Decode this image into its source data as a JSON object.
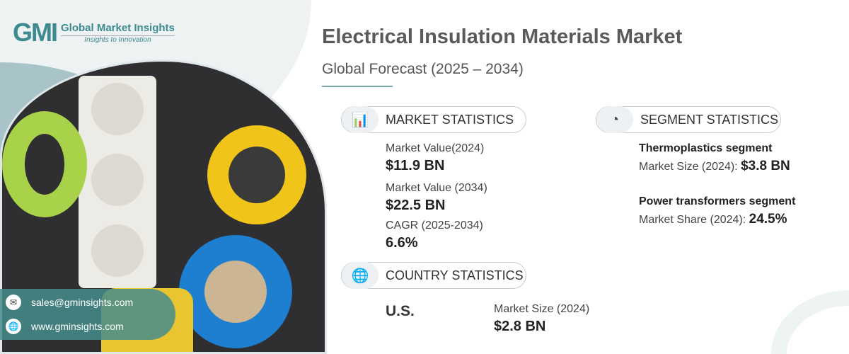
{
  "logo": {
    "mark": "GMI",
    "name": "Global Market Insights",
    "tagline": "Insights to Innovation"
  },
  "header": {
    "title": "Electrical Insulation Materials Market",
    "subtitle": "Global Forecast (2025 – 2034)"
  },
  "market": {
    "heading": "MARKET STATISTICS",
    "icon": "chart-globe-icon",
    "items": [
      {
        "label": "Market Value(2024)",
        "value": "$11.9 BN"
      },
      {
        "label": "Market Value (2034)",
        "value": "$22.5 BN"
      },
      {
        "label": "CAGR (2025-2034)",
        "value": "6.6%"
      }
    ]
  },
  "segment": {
    "heading": "SEGMENT STATISTICS",
    "icon": "pie-chart-icon",
    "items": [
      {
        "name": "Thermoplastics segment",
        "label": "Market Size (2024): ",
        "value": "$3.8 BN"
      },
      {
        "name": "Power transformers segment",
        "label": "Market Share (2024): ",
        "value": "24.5%"
      }
    ]
  },
  "country": {
    "heading": "COUNTRY STATISTICS",
    "icon": "globe-icon",
    "name": "U.S.",
    "label": "Market Size (2024)",
    "value": "$2.8 BN"
  },
  "contact": {
    "email": "sales@gminsights.com",
    "website": "www.gminsights.com"
  },
  "colors": {
    "accent": "#3d8a8f"
  }
}
